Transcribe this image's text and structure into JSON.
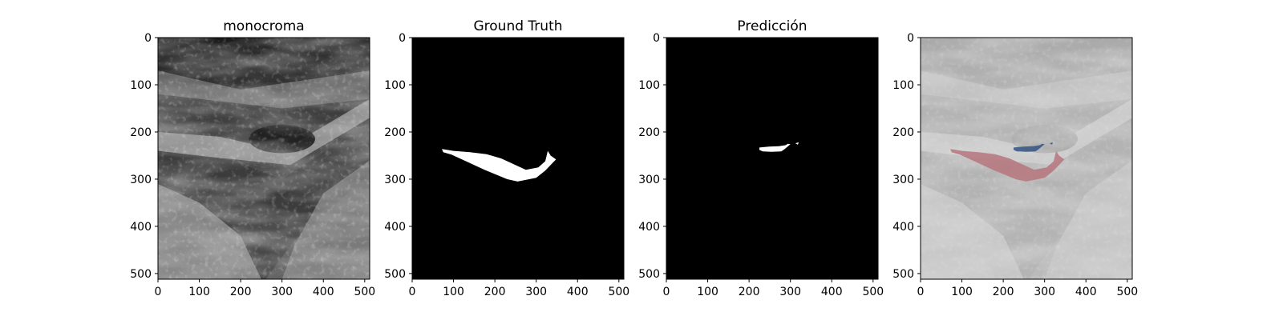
{
  "chart_data": [
    {
      "type": "heatmap",
      "title": "monocroma",
      "content": "ultrasound-grayscale",
      "xlim": [
        0,
        512
      ],
      "ylim": [
        512,
        0
      ],
      "xticks": [
        0,
        100,
        200,
        300,
        400,
        500
      ],
      "yticks": [
        0,
        100,
        200,
        300,
        400,
        500
      ]
    },
    {
      "type": "heatmap",
      "title": "Ground Truth",
      "content": "binary-mask",
      "xlim": [
        0,
        512
      ],
      "ylim": [
        512,
        0
      ],
      "xticks": [
        0,
        100,
        200,
        300,
        400,
        500
      ],
      "yticks": [
        0,
        100,
        200,
        300,
        400,
        500
      ]
    },
    {
      "type": "heatmap",
      "title": "Predicción",
      "content": "binary-mask",
      "xlim": [
        0,
        512
      ],
      "ylim": [
        512,
        0
      ],
      "xticks": [
        0,
        100,
        200,
        300,
        400,
        500
      ],
      "yticks": [
        0,
        100,
        200,
        300,
        400,
        500
      ]
    },
    {
      "type": "heatmap",
      "title": "",
      "content": "overlay",
      "xlim": [
        0,
        512
      ],
      "ylim": [
        512,
        0
      ],
      "xticks": [
        0,
        100,
        200,
        300,
        400,
        500
      ],
      "yticks": [
        0,
        100,
        200,
        300,
        400,
        500
      ]
    }
  ],
  "regions": {
    "ground_truth": [
      [
        72,
        236
      ],
      [
        100,
        240
      ],
      [
        140,
        243
      ],
      [
        180,
        247
      ],
      [
        215,
        256
      ],
      [
        245,
        268
      ],
      [
        275,
        280
      ],
      [
        305,
        275
      ],
      [
        322,
        262
      ],
      [
        328,
        240
      ],
      [
        335,
        250
      ],
      [
        348,
        258
      ],
      [
        338,
        267
      ],
      [
        322,
        282
      ],
      [
        300,
        297
      ],
      [
        255,
        305
      ],
      [
        230,
        300
      ],
      [
        175,
        280
      ],
      [
        130,
        262
      ],
      [
        95,
        248
      ],
      [
        75,
        243
      ]
    ],
    "prediction": [
      [
        225,
        233
      ],
      [
        248,
        231
      ],
      [
        272,
        230
      ],
      [
        288,
        228
      ],
      [
        294,
        225
      ],
      [
        300,
        226
      ],
      [
        292,
        232
      ],
      [
        285,
        237
      ],
      [
        278,
        241
      ],
      [
        255,
        242
      ],
      [
        233,
        241
      ],
      [
        225,
        238
      ]
    ],
    "prediction_speck": [
      [
        312,
        224
      ],
      [
        320,
        222
      ],
      [
        318,
        227
      ]
    ]
  },
  "colors": {
    "mask_fill": "#ffffff",
    "mask_background": "#000000",
    "gt_overlay": "#b5767d",
    "pred_overlay": "#3c5a86",
    "overlay_base": "#d6d6d6"
  }
}
